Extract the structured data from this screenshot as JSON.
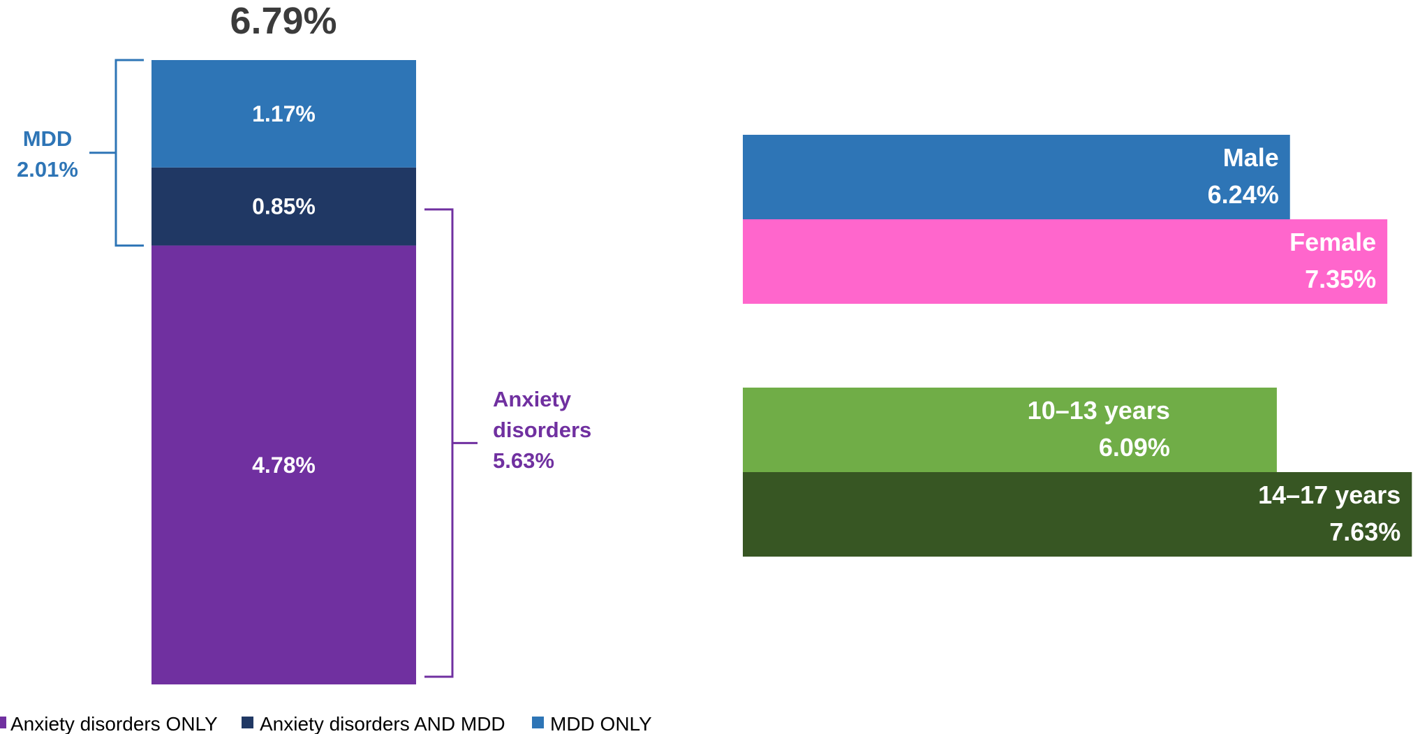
{
  "chart_data": [
    {
      "type": "bar",
      "stacked": true,
      "total_label": "6.79%",
      "total": 6.79,
      "segments": [
        {
          "name": "Anxiety disorders ONLY",
          "value": 4.78,
          "label": "4.78%",
          "color": "#7030a0"
        },
        {
          "name": "Anxiety disorders AND MDD",
          "value": 0.85,
          "label": "0.85%",
          "color": "#203864"
        },
        {
          "name": "MDD ONLY",
          "value": 1.17,
          "label": "1.17%",
          "color": "#2e75b6"
        }
      ],
      "brackets": {
        "mdd": {
          "lines": [
            "MDD",
            "2.01%"
          ],
          "value": 2.01,
          "color": "#2e75b6"
        },
        "anxiety": {
          "lines": [
            "Anxiety",
            "disorders",
            "5.63%"
          ],
          "value": 5.63,
          "color": "#7030a0"
        }
      },
      "legend": {
        "placement": "bottom-left",
        "items": [
          {
            "label": "Anxiety disorders ONLY",
            "color": "#7030a0"
          },
          {
            "label": "Anxiety disorders AND MDD",
            "color": "#203864"
          },
          {
            "label": "MDD ONLY",
            "color": "#2e75b6"
          }
        ]
      }
    },
    {
      "type": "bar",
      "orientation": "horizontal",
      "groups": [
        {
          "name": "sex",
          "bars": [
            {
              "category": "Male",
              "value": 6.24,
              "value_label": "6.24%",
              "color": "#2e75b6"
            },
            {
              "category": "Female",
              "value": 7.35,
              "value_label": "7.35%",
              "color": "#ff66cc"
            }
          ]
        },
        {
          "name": "age",
          "bars": [
            {
              "category": "10–13 years",
              "value": 6.09,
              "value_label": "6.09%",
              "color": "#70ad47"
            },
            {
              "category": "14–17 years",
              "value": 7.63,
              "value_label": "7.63%",
              "color": "#375623"
            }
          ]
        }
      ]
    }
  ]
}
